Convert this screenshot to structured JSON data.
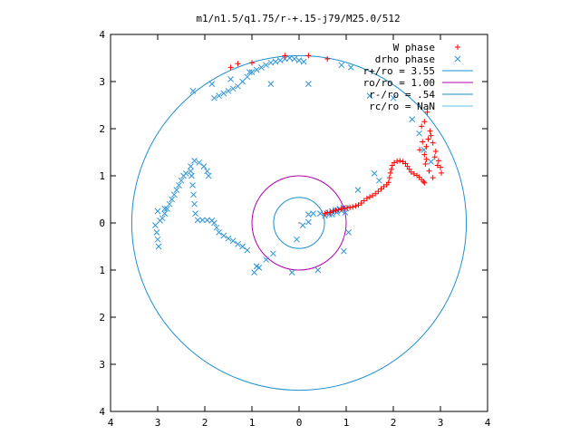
{
  "chart_data": {
    "type": "scatter",
    "title": "m1/n1.5/q1.75/r-+.15-j79/M25.0/512",
    "xlabel": "",
    "ylabel": "",
    "xlim": [
      -4,
      4
    ],
    "ylim": [
      -4,
      4
    ],
    "x_tick_values": [
      -4,
      -3,
      -2,
      -1,
      0,
      1,
      2,
      3,
      4
    ],
    "x_tick_labels": [
      "4",
      "3",
      "2",
      "1",
      "0",
      "1",
      "2",
      "3",
      "4"
    ],
    "y_tick_values": [
      4,
      3,
      2,
      1,
      0,
      -1,
      -2,
      -3,
      -4
    ],
    "y_tick_labels": [
      "4",
      "3",
      "2",
      "1",
      "0",
      "1",
      "2",
      "3",
      "4"
    ],
    "grid": false,
    "legend_position": "top-right",
    "colors": {
      "w_phase": "#ff0000",
      "drho_phase": "#2f95d6",
      "r_plus": "#1f8fce",
      "r_o": "#b000b0",
      "r_minus": "#1f8fce",
      "r_c": "#5fc3e8"
    },
    "series": [
      {
        "name": "W phase",
        "marker": "plus",
        "points": [
          [
            0.55,
            0.2
          ],
          [
            0.6,
            0.22
          ],
          [
            0.66,
            0.22
          ],
          [
            0.72,
            0.25
          ],
          [
            0.78,
            0.27
          ],
          [
            0.84,
            0.28
          ],
          [
            0.9,
            0.3
          ],
          [
            0.96,
            0.31
          ],
          [
            1.02,
            0.32
          ],
          [
            1.08,
            0.33
          ],
          [
            1.14,
            0.34
          ],
          [
            1.2,
            0.36
          ],
          [
            1.26,
            0.38
          ],
          [
            1.32,
            0.42
          ],
          [
            1.38,
            0.47
          ],
          [
            1.44,
            0.52
          ],
          [
            1.5,
            0.55
          ],
          [
            1.56,
            0.58
          ],
          [
            1.62,
            0.62
          ],
          [
            1.68,
            0.67
          ],
          [
            1.74,
            0.72
          ],
          [
            1.8,
            0.77
          ],
          [
            1.86,
            0.81
          ],
          [
            1.9,
            0.86
          ],
          [
            1.92,
            0.96
          ],
          [
            1.94,
            1.06
          ],
          [
            1.96,
            1.14
          ],
          [
            1.98,
            1.22
          ],
          [
            2.02,
            1.28
          ],
          [
            2.08,
            1.31
          ],
          [
            2.14,
            1.32
          ],
          [
            2.2,
            1.3
          ],
          [
            2.26,
            1.26
          ],
          [
            2.3,
            1.2
          ],
          [
            2.34,
            1.14
          ],
          [
            2.38,
            1.08
          ],
          [
            2.44,
            1.04
          ],
          [
            2.5,
            1.01
          ],
          [
            2.55,
            0.97
          ],
          [
            2.6,
            0.92
          ],
          [
            2.64,
            0.88
          ],
          [
            2.66,
            0.85
          ],
          [
            2.68,
            1.25
          ],
          [
            2.66,
            1.45
          ],
          [
            2.7,
            1.62
          ],
          [
            2.74,
            1.78
          ],
          [
            2.78,
            1.95
          ],
          [
            2.84,
            1.7
          ],
          [
            2.9,
            1.52
          ],
          [
            2.96,
            1.32
          ],
          [
            3.0,
            1.18
          ],
          [
            3.02,
            1.06
          ],
          [
            2.6,
            2.05
          ],
          [
            2.66,
            2.15
          ],
          [
            2.72,
            2.35
          ],
          [
            2.8,
            1.85
          ],
          [
            2.88,
            1.4
          ],
          [
            2.94,
            1.22
          ],
          [
            2.62,
            1.72
          ],
          [
            2.56,
            1.55
          ],
          [
            -1.45,
            3.3
          ],
          [
            -1.0,
            3.4
          ],
          [
            -0.3,
            3.55
          ],
          [
            0.2,
            3.55
          ],
          [
            0.6,
            3.48
          ],
          [
            -1.3,
            3.38
          ],
          [
            2.84,
            0.96
          ],
          [
            2.76,
            1.1
          ],
          [
            2.7,
            1.35
          ]
        ]
      },
      {
        "name": "drho phase",
        "marker": "cross",
        "points": [
          [
            0.55,
            0.15
          ],
          [
            0.62,
            0.22
          ],
          [
            0.7,
            0.25
          ],
          [
            0.78,
            0.28
          ],
          [
            0.86,
            0.3
          ],
          [
            0.94,
            0.32
          ],
          [
            1.0,
            0.31
          ],
          [
            0.9,
            0.26
          ],
          [
            0.8,
            0.22
          ],
          [
            0.7,
            0.18
          ],
          [
            0.98,
            0.22
          ],
          [
            0.64,
            0.18
          ],
          [
            0.2,
            0.02
          ],
          [
            0.08,
            -0.05
          ],
          [
            -0.05,
            -0.35
          ],
          [
            -0.55,
            -0.65
          ],
          [
            -0.7,
            -0.78
          ],
          [
            -0.85,
            -0.95
          ],
          [
            -0.95,
            -1.05
          ],
          [
            -0.9,
            -0.92
          ],
          [
            -1.1,
            -0.58
          ],
          [
            -1.2,
            -0.5
          ],
          [
            -1.3,
            -0.45
          ],
          [
            -1.4,
            -0.38
          ],
          [
            -1.5,
            -0.33
          ],
          [
            -1.6,
            -0.27
          ],
          [
            -1.7,
            -0.2
          ],
          [
            -1.75,
            -0.1
          ],
          [
            -1.8,
            0.0
          ],
          [
            -1.85,
            0.05
          ],
          [
            -1.95,
            0.06
          ],
          [
            -2.05,
            0.06
          ],
          [
            -2.15,
            0.06
          ],
          [
            -2.2,
            0.2
          ],
          [
            -2.22,
            0.4
          ],
          [
            -2.24,
            0.6
          ],
          [
            -2.26,
            0.8
          ],
          [
            -2.28,
            1.0
          ],
          [
            -2.3,
            1.2
          ],
          [
            -2.22,
            1.32
          ],
          [
            -2.12,
            1.28
          ],
          [
            -2.02,
            1.2
          ],
          [
            -1.95,
            1.1
          ],
          [
            -1.92,
            1.0
          ],
          [
            -2.3,
            1.1
          ],
          [
            -2.4,
            1.05
          ],
          [
            -2.45,
            1.0
          ],
          [
            -2.5,
            0.9
          ],
          [
            -2.55,
            0.8
          ],
          [
            -2.6,
            0.7
          ],
          [
            -2.65,
            0.6
          ],
          [
            -2.7,
            0.5
          ],
          [
            -2.75,
            0.4
          ],
          [
            -2.8,
            0.3
          ],
          [
            -2.85,
            0.2
          ],
          [
            -2.9,
            0.1
          ],
          [
            -2.95,
            0.05
          ],
          [
            -3.0,
            0.25
          ],
          [
            -3.05,
            -0.05
          ],
          [
            -3.02,
            -0.2
          ],
          [
            -3.0,
            -0.35
          ],
          [
            -2.98,
            -0.5
          ],
          [
            -2.85,
            0.3
          ],
          [
            -1.8,
            2.65
          ],
          [
            -1.7,
            2.7
          ],
          [
            -1.6,
            2.75
          ],
          [
            -1.5,
            2.8
          ],
          [
            -1.4,
            2.85
          ],
          [
            -1.3,
            2.9
          ],
          [
            -1.2,
            3.0
          ],
          [
            -1.1,
            3.1
          ],
          [
            -1.0,
            3.2
          ],
          [
            -0.9,
            3.25
          ],
          [
            -0.8,
            3.3
          ],
          [
            -0.7,
            3.35
          ],
          [
            -0.6,
            3.4
          ],
          [
            -0.5,
            3.42
          ],
          [
            -0.4,
            3.45
          ],
          [
            -0.3,
            3.48
          ],
          [
            -0.2,
            3.5
          ],
          [
            -0.1,
            3.48
          ],
          [
            0.0,
            3.45
          ],
          [
            0.1,
            3.42
          ],
          [
            -2.25,
            2.8
          ],
          [
            -1.85,
            2.95
          ],
          [
            -1.45,
            3.05
          ],
          [
            -1.05,
            3.2
          ],
          [
            -0.6,
            2.95
          ],
          [
            0.2,
            2.95
          ],
          [
            0.9,
            3.35
          ],
          [
            1.1,
            3.3
          ],
          [
            1.5,
            2.7
          ],
          [
            2.0,
            2.65
          ],
          [
            2.4,
            2.2
          ],
          [
            2.55,
            1.9
          ],
          [
            2.65,
            1.55
          ],
          [
            2.8,
            1.3
          ],
          [
            1.6,
            1.05
          ],
          [
            1.7,
            0.9
          ],
          [
            1.25,
            0.7
          ],
          [
            1.05,
            -0.2
          ],
          [
            0.95,
            -0.6
          ],
          [
            0.4,
            -1.0
          ],
          [
            -0.15,
            -1.05
          ],
          [
            0.2,
            0.18
          ],
          [
            0.3,
            0.2
          ],
          [
            0.45,
            0.2
          ]
        ]
      }
    ],
    "circles": [
      {
        "name": "r+/ro = 3.55",
        "radius": 3.55
      },
      {
        "name": "ro/ro = 1.00",
        "radius": 1.0
      },
      {
        "name": "r-/ro = .54",
        "radius": 0.54
      },
      {
        "name": "rc/ro = NaN",
        "radius": null
      }
    ]
  }
}
